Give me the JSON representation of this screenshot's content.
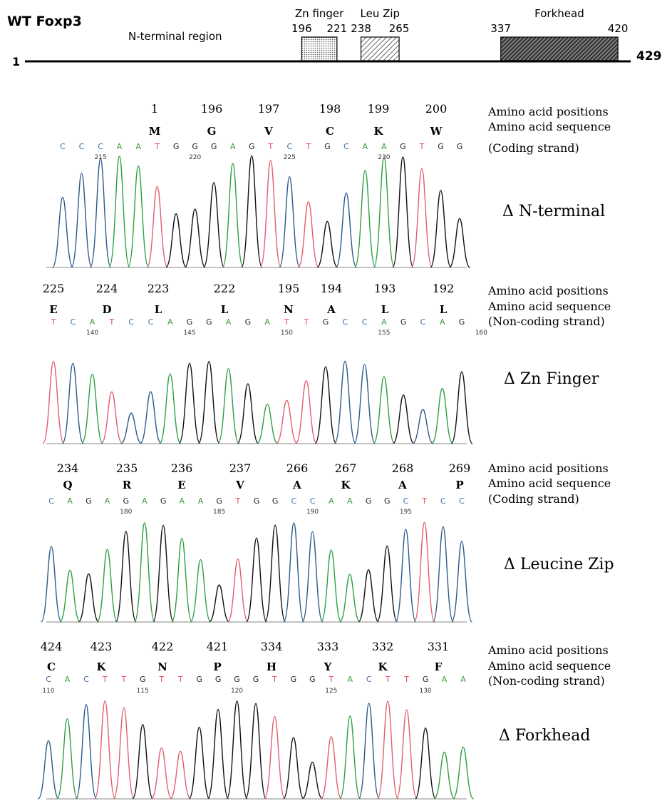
{
  "header": {
    "title": "WT Foxp3",
    "region": "N-terminal region",
    "start": "1",
    "end": "429",
    "domains": [
      {
        "name": "Zn finger",
        "from": 196,
        "to": 221
      },
      {
        "name": "Leu Zip",
        "from": 238,
        "to": 265
      },
      {
        "name": "Forkhead",
        "from": 337,
        "to": 420
      }
    ]
  },
  "panels": [
    {
      "positions": [
        "1",
        "196",
        "197",
        "198",
        "199",
        "200"
      ],
      "residues": [
        "M",
        "G",
        "V",
        "C",
        "K",
        "W"
      ],
      "bases": [
        "C",
        "C",
        "C",
        "A",
        "A",
        "T",
        "G",
        "G",
        "G",
        "A",
        "G",
        "T",
        "C",
        "T",
        "G",
        "C",
        "A",
        "A",
        "G",
        "T",
        "G",
        "G"
      ],
      "base_numbers": [
        "215",
        "220",
        "225",
        "230"
      ],
      "row_labels": [
        "Amino acid positions",
        "Amino acid sequence",
        "(Coding strand)"
      ],
      "mutant": "Δ N-terminal"
    },
    {
      "positions": [
        "225",
        "224",
        "223",
        "222",
        "195",
        "194",
        "193",
        "192"
      ],
      "residues": [
        "E",
        "D",
        "L",
        "L",
        "N",
        "A",
        "L",
        "L"
      ],
      "bases": [
        "T",
        "C",
        "A",
        "T",
        "C",
        "C",
        "A",
        "G",
        "G",
        "A",
        "G",
        "A",
        "T",
        "T",
        "G",
        "C",
        "C",
        "A",
        "G",
        "C",
        "A",
        "G"
      ],
      "base_numbers": [
        "140",
        "145",
        "150",
        "155",
        "160"
      ],
      "row_labels": [
        "Amino acid positions",
        "Amino acid sequence",
        "(Non-coding strand)"
      ],
      "mutant": "Δ Zn Finger"
    },
    {
      "positions": [
        "234",
        "235",
        "236",
        "237",
        "266",
        "267",
        "268",
        "269"
      ],
      "residues": [
        "Q",
        "R",
        "E",
        "V",
        "A",
        "K",
        "A",
        "P"
      ],
      "bases": [
        "C",
        "A",
        "G",
        "A",
        "G",
        "A",
        "G",
        "A",
        "A",
        "G",
        "T",
        "G",
        "G",
        "C",
        "C",
        "A",
        "A",
        "G",
        "G",
        "C",
        "T",
        "C",
        "C"
      ],
      "base_numbers": [
        "180",
        "185",
        "190",
        "195"
      ],
      "row_labels": [
        "Amino acid positions",
        "Amino acid sequence",
        "(Coding strand)"
      ],
      "mutant": "Δ Leucine Zip"
    },
    {
      "positions": [
        "424",
        "423",
        "422",
        "421",
        "334",
        "333",
        "332",
        "331"
      ],
      "residues": [
        "C",
        "K",
        "N",
        "P",
        "H",
        "Y",
        "K",
        "F"
      ],
      "bases": [
        "C",
        "A",
        "C",
        "T",
        "T",
        "G",
        "T",
        "T",
        "G",
        "G",
        "G",
        "G",
        "T",
        "G",
        "G",
        "T",
        "A",
        "C",
        "T",
        "T",
        "G",
        "A",
        "A"
      ],
      "base_numbers": [
        "110",
        "115",
        "120",
        "125",
        "130"
      ],
      "row_labels": [
        "Amino acid positions",
        "Amino acid sequence",
        "(Non-coding strand)"
      ],
      "mutant": "Δ Forkhead"
    }
  ]
}
